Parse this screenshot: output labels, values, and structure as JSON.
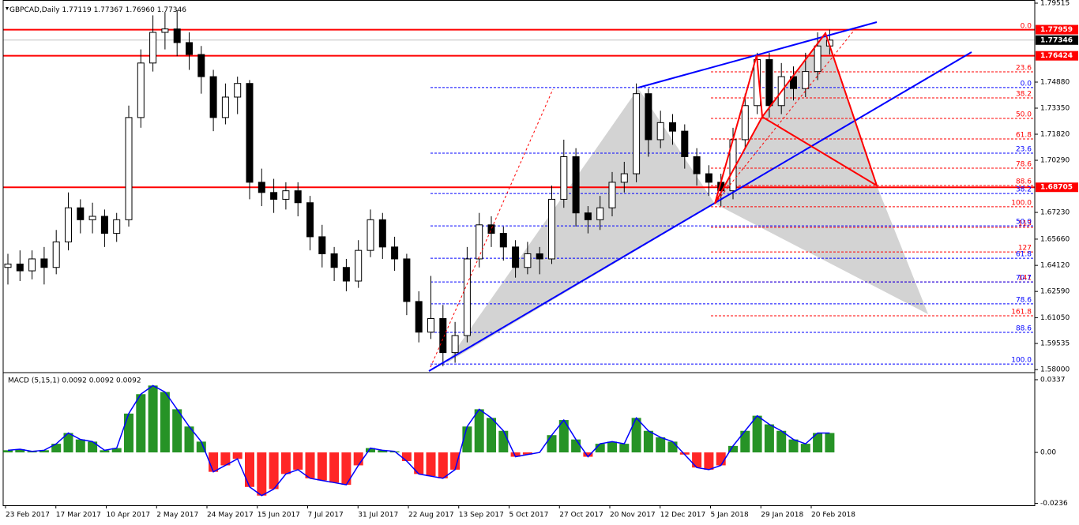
{
  "header": {
    "title": "GBPCAD,Daily",
    "values": [
      "1.77119",
      "1.77367",
      "1.76960",
      "1.77346"
    ]
  },
  "price_axis": {
    "ylim": [
      1.5787,
      1.797
    ],
    "ticks": [
      1.79515,
      {
        "value": 1.7488,
        "label": "1.74880"
      },
      {
        "value": 1.7335,
        "label": "1.73350"
      },
      {
        "value": 1.7182,
        "label": "1.71820"
      },
      {
        "value": 1.7029,
        "label": "1.70290"
      },
      {
        "value": 1.6723,
        "label": "1.67230"
      },
      {
        "value": 1.6566,
        "label": "1.65660"
      },
      {
        "value": 1.6412,
        "label": "1.64120"
      },
      {
        "value": 1.6259,
        "label": "1.62590"
      },
      {
        "value": 1.6105,
        "label": "1.61050"
      },
      1.59535,
      {
        "value": 1.58,
        "label": "1.58000"
      }
    ]
  },
  "levels": [
    {
      "value": 1.77959,
      "color": "#ff0000"
    },
    {
      "value": 1.76424,
      "color": "#ff0000"
    },
    {
      "value": 1.68705,
      "color": "#ff0000"
    }
  ],
  "current_price": {
    "value": 1.77346,
    "color": "#c0c0c0"
  },
  "fibo_red": {
    "color": "#ff0000",
    "levels": [
      {
        "label": "0.0",
        "value": 1.7794
      },
      {
        "label": "23.6",
        "value": 1.7548
      },
      {
        "label": "38.2",
        "value": 1.7395
      },
      {
        "label": "50.0",
        "value": 1.7275
      },
      {
        "label": "61.8",
        "value": 1.7154
      },
      {
        "label": "78.6",
        "value": 1.6983
      },
      {
        "label": "88.6",
        "value": 1.6881
      },
      {
        "label": "100.0",
        "value": 1.6756
      },
      {
        "label": "113",
        "value": 1.6635
      },
      {
        "label": "127",
        "value": 1.6491
      },
      {
        "label": "141",
        "value": 1.6315
      },
      {
        "label": "161.8",
        "value": 1.6116
      }
    ]
  },
  "fibo_blue": {
    "color": "#0000ff",
    "levels": [
      {
        "label": "0.0",
        "value": 1.7456
      },
      {
        "label": "23.6",
        "value": 1.7071
      },
      {
        "label": "38.2",
        "value": 1.6834
      },
      {
        "label": "50.0",
        "value": 1.6644
      },
      {
        "label": "61.8",
        "value": 1.6454
      },
      {
        "label": "70.7",
        "value": 1.6315
      },
      {
        "label": "78.6",
        "value": 1.6186
      },
      {
        "label": "88.6",
        "value": 1.6019
      },
      {
        "label": "100.0",
        "value": 1.5833
      }
    ]
  },
  "candles": [
    [
      1.64,
      1.648,
      1.63,
      1.642
    ],
    [
      1.642,
      1.65,
      1.632,
      1.638
    ],
    [
      1.638,
      1.65,
      1.633,
      1.645
    ],
    [
      1.645,
      1.652,
      1.63,
      1.64
    ],
    [
      1.64,
      1.662,
      1.636,
      1.655
    ],
    [
      1.655,
      1.684,
      1.65,
      1.675
    ],
    [
      1.675,
      1.68,
      1.66,
      1.668
    ],
    [
      1.668,
      1.678,
      1.66,
      1.67
    ],
    [
      1.67,
      1.674,
      1.652,
      1.66
    ],
    [
      1.66,
      1.672,
      1.655,
      1.668
    ],
    [
      1.668,
      1.735,
      1.664,
      1.728
    ],
    [
      1.728,
      1.768,
      1.722,
      1.76
    ],
    [
      1.76,
      1.788,
      1.755,
      1.778
    ],
    [
      1.778,
      1.79,
      1.768,
      1.78
    ],
    [
      1.78,
      1.791,
      1.764,
      1.772
    ],
    [
      1.772,
      1.778,
      1.756,
      1.765
    ],
    [
      1.765,
      1.77,
      1.742,
      1.752
    ],
    [
      1.752,
      1.756,
      1.72,
      1.728
    ],
    [
      1.728,
      1.748,
      1.724,
      1.74
    ],
    [
      1.74,
      1.752,
      1.73,
      1.748
    ],
    [
      1.748,
      1.75,
      1.68,
      1.69
    ],
    [
      1.69,
      1.698,
      1.676,
      1.684
    ],
    [
      1.684,
      1.692,
      1.672,
      1.68
    ],
    [
      1.68,
      1.69,
      1.674,
      1.685
    ],
    [
      1.685,
      1.69,
      1.67,
      1.678
    ],
    [
      1.678,
      1.682,
      1.65,
      1.658
    ],
    [
      1.658,
      1.665,
      1.64,
      1.648
    ],
    [
      1.648,
      1.652,
      1.632,
      1.64
    ],
    [
      1.64,
      1.645,
      1.626,
      1.632
    ],
    [
      1.632,
      1.656,
      1.628,
      1.65
    ],
    [
      1.65,
      1.674,
      1.646,
      1.668
    ],
    [
      1.668,
      1.672,
      1.645,
      1.652
    ],
    [
      1.652,
      1.658,
      1.638,
      1.645
    ],
    [
      1.645,
      1.648,
      1.612,
      1.62
    ],
    [
      1.62,
      1.626,
      1.596,
      1.602
    ],
    [
      1.602,
      1.635,
      1.598,
      1.61
    ],
    [
      1.61,
      1.618,
      1.582,
      1.59
    ],
    [
      1.59,
      1.608,
      1.584,
      1.6
    ],
    [
      1.6,
      1.652,
      1.596,
      1.645
    ],
    [
      1.645,
      1.672,
      1.64,
      1.665
    ],
    [
      1.665,
      1.67,
      1.652,
      1.66
    ],
    [
      1.66,
      1.664,
      1.644,
      1.652
    ],
    [
      1.652,
      1.656,
      1.634,
      1.64
    ],
    [
      1.64,
      1.655,
      1.636,
      1.648
    ],
    [
      1.648,
      1.652,
      1.636,
      1.645
    ],
    [
      1.645,
      1.688,
      1.642,
      1.68
    ],
    [
      1.68,
      1.715,
      1.675,
      1.705
    ],
    [
      1.705,
      1.71,
      1.664,
      1.672
    ],
    [
      1.672,
      1.676,
      1.66,
      1.668
    ],
    [
      1.668,
      1.682,
      1.662,
      1.675
    ],
    [
      1.675,
      1.696,
      1.67,
      1.69
    ],
    [
      1.69,
      1.702,
      1.684,
      1.695
    ],
    [
      1.695,
      1.748,
      1.69,
      1.742
    ],
    [
      1.742,
      1.745,
      1.705,
      1.715
    ],
    [
      1.715,
      1.732,
      1.71,
      1.725
    ],
    [
      1.725,
      1.73,
      1.712,
      1.72
    ],
    [
      1.72,
      1.724,
      1.698,
      1.705
    ],
    [
      1.705,
      1.71,
      1.688,
      1.695
    ],
    [
      1.695,
      1.7,
      1.682,
      1.69
    ],
    [
      1.69,
      1.695,
      1.676,
      1.685
    ],
    [
      1.685,
      1.722,
      1.68,
      1.715
    ],
    [
      1.715,
      1.742,
      1.71,
      1.735
    ],
    [
      1.735,
      1.766,
      1.73,
      1.762
    ],
    [
      1.762,
      1.766,
      1.728,
      1.735
    ],
    [
      1.735,
      1.76,
      1.73,
      1.752
    ],
    [
      1.752,
      1.758,
      1.738,
      1.745
    ],
    [
      1.745,
      1.766,
      1.74,
      1.755
    ],
    [
      1.755,
      1.778,
      1.75,
      1.77
    ],
    [
      1.77,
      1.7796,
      1.765,
      1.77346
    ]
  ],
  "dates": [
    "23 Feb 2017",
    "17 Mar 2017",
    "10 Apr 2017",
    "2 May 2017",
    "24 May 2017",
    "15 Jun 2017",
    "7 Jul 2017",
    "31 Jul 2017",
    "22 Aug 2017",
    "13 Sep 2017",
    "5 Oct 2017",
    "27 Oct 2017",
    "20 Nov 2017",
    "12 Dec 2017",
    "5 Jan 2018",
    "29 Jan 2018",
    "20 Feb 2018"
  ],
  "macd": {
    "label": "MACD (5,15,1) 0.0092 0.0092 0.0092",
    "ylim": [
      -0.0245,
      0.03625
    ],
    "ticks": [
      0.0337,
      {
        "value": 0,
        "label": "0.00"
      },
      -0.0236
    ],
    "up_color": "#008000",
    "down_color": "#ff0000",
    "line_color": "#0000ff",
    "values": [
      0.001,
      0.0015,
      0.0005,
      0.001,
      0.004,
      0.009,
      0.006,
      0.005,
      0.001,
      0.002,
      0.018,
      0.027,
      0.031,
      0.028,
      0.02,
      0.012,
      0.005,
      -0.009,
      -0.006,
      -0.003,
      -0.016,
      -0.02,
      -0.017,
      -0.01,
      -0.008,
      -0.012,
      -0.013,
      -0.014,
      -0.015,
      -0.006,
      0.002,
      0.001,
      0.0005,
      -0.004,
      -0.01,
      -0.011,
      -0.012,
      -0.008,
      0.012,
      0.02,
      0.016,
      0.01,
      -0.002,
      -0.001,
      0,
      0.008,
      0.015,
      0.006,
      -0.002,
      0.004,
      0.005,
      0.004,
      0.016,
      0.01,
      0.007,
      0.005,
      -0.001,
      -0.007,
      -0.008,
      -0.006,
      0.003,
      0.01,
      0.017,
      0.013,
      0.01,
      0.006,
      0.004,
      0.009,
      0.009
    ]
  }
}
